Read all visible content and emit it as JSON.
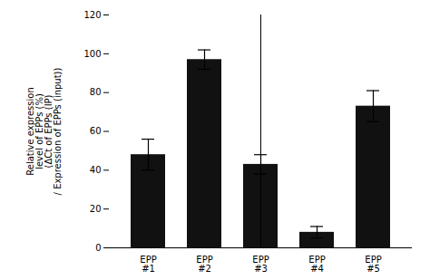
{
  "chart_data": {
    "type": "bar",
    "categories": [
      "EPP\n#1",
      "EPP\n#2",
      "EPP\n#3",
      "EPP\n#4",
      "EPP\n#5"
    ],
    "values": [
      48,
      97,
      43,
      8,
      73
    ],
    "errors": [
      8,
      5,
      5,
      3,
      8
    ],
    "color": "#111111",
    "ylim": [
      0,
      120
    ],
    "yticks": [
      0,
      20,
      40,
      60,
      80,
      100,
      120
    ],
    "ylabel": "Relative expression\nlevel of EPPs (%)\n(ΔCt of EPPs (IP)\n/ Expression of EPPs (input))",
    "grid": false
  }
}
